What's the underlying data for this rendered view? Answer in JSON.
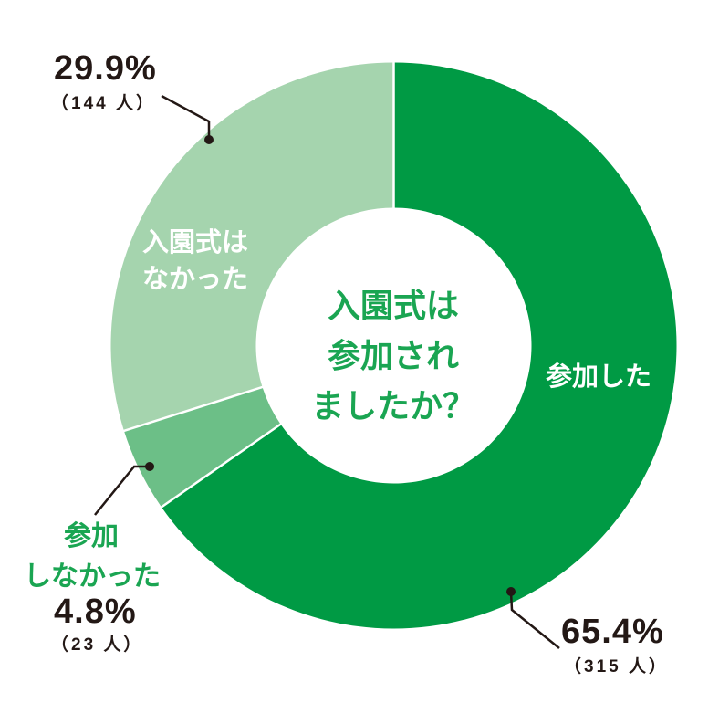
{
  "chart_data": {
    "type": "pie",
    "subtype": "donut",
    "title": "入園式は参加されましたか？",
    "categories": [
      "参加した",
      "参加しなかった",
      "入園式はなかった"
    ],
    "values": [
      65.4,
      4.8,
      29.9
    ],
    "counts": [
      315,
      23,
      144
    ],
    "unit": "%",
    "count_unit": "人",
    "colors": [
      "#009a44",
      "#6cbf87",
      "#a5d4ae"
    ],
    "start_angle_deg": 0,
    "direction": "clockwise",
    "legend": "none (direct labels)"
  },
  "center": {
    "lines": [
      "入園式は",
      "参加され",
      "ましたか？"
    ]
  },
  "labels": {
    "attended": {
      "name": "参加した",
      "percent": "65.4%",
      "count": "（315 人）"
    },
    "not_attended": {
      "name_line1": "参加",
      "name_line2": "しなかった",
      "percent": "4.8%",
      "count": "（23 人）"
    },
    "no_ceremony": {
      "name_line1": "入園式は",
      "name_line2": "なかった",
      "percent": "29.9%",
      "count": "（144 人）"
    }
  },
  "colors": {
    "attended": "#009a44",
    "not_attended": "#6cbf87",
    "no_ceremony": "#a5d4ae",
    "label_green": "#1aa552",
    "text_dark": "#231815"
  }
}
